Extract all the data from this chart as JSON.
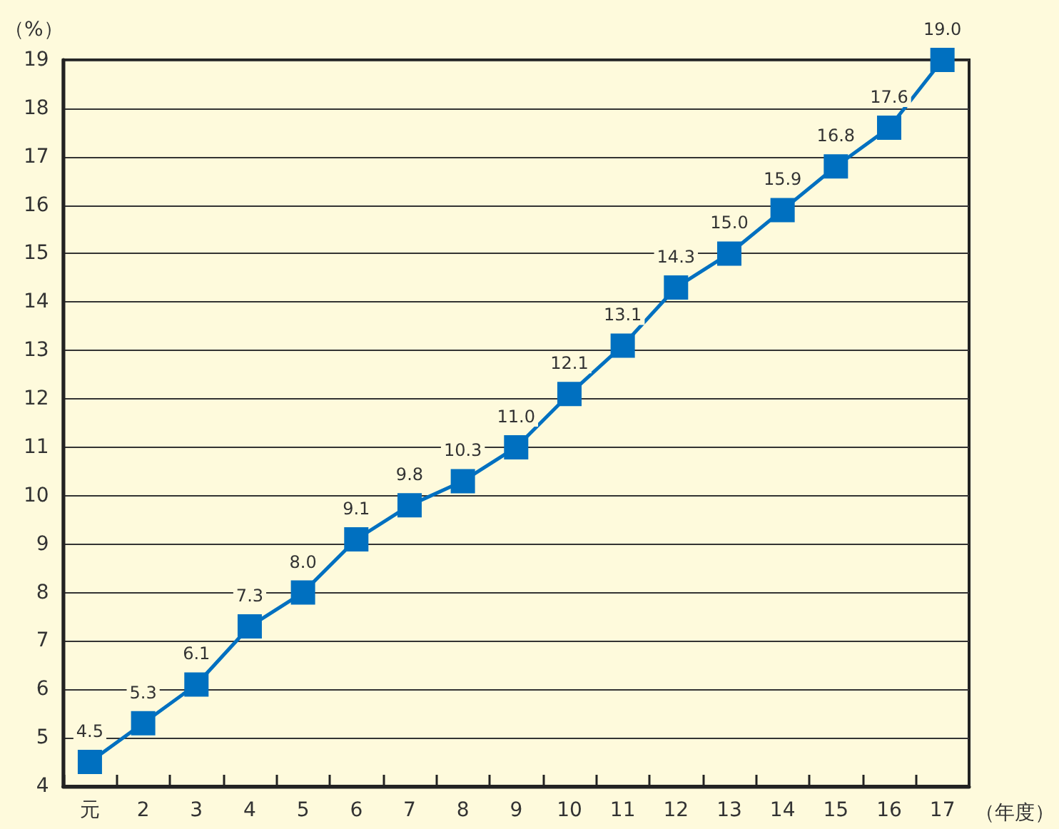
{
  "chart_data": {
    "type": "line",
    "xlabel": "（年度）",
    "ylabel": "（%）",
    "categories": [
      "元",
      "2",
      "3",
      "4",
      "5",
      "6",
      "7",
      "8",
      "9",
      "10",
      "11",
      "12",
      "13",
      "14",
      "15",
      "16",
      "17"
    ],
    "series": [
      {
        "color": "#0070c0",
        "values": [
          4.5,
          5.3,
          6.1,
          7.3,
          8.0,
          9.1,
          9.8,
          10.3,
          11.0,
          12.1,
          13.1,
          14.3,
          15.0,
          15.9,
          16.8,
          17.6,
          19.0
        ],
        "value_labels": [
          "4.5",
          "5.3",
          "6.1",
          "7.3",
          "8.0",
          "9.1",
          "9.8",
          "10.3",
          "11.0",
          "12.1",
          "13.1",
          "14.3",
          "15.0",
          "15.9",
          "16.8",
          "17.6",
          "19.0"
        ]
      }
    ],
    "ylim": [
      4,
      19
    ],
    "yticks": [
      4,
      5,
      6,
      7,
      8,
      9,
      10,
      11,
      12,
      13,
      14,
      15,
      16,
      17,
      18,
      19
    ],
    "grid": "y",
    "marker": "square",
    "line_style": "solid"
  }
}
